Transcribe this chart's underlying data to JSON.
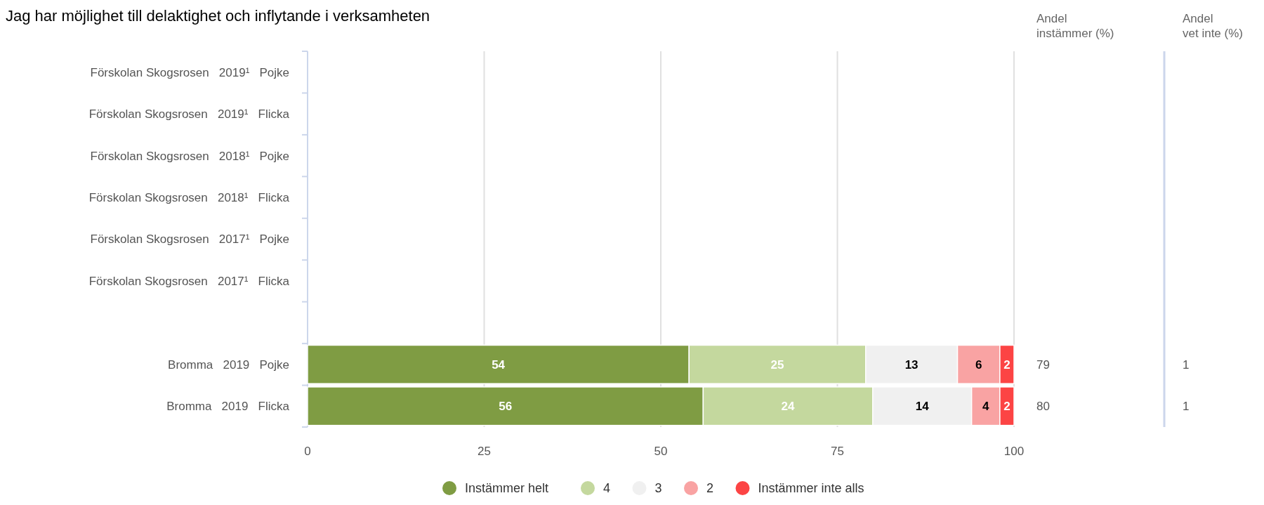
{
  "chart_data": {
    "type": "bar",
    "orientation": "horizontal",
    "stacked": true,
    "title": "Jag har möjlighet till delaktighet och inflytande i verksamheten",
    "categories": [
      "Förskolan Skogsrosen   2019¹   Pojke",
      "Förskolan Skogsrosen   2019¹   Flicka",
      "Förskolan Skogsrosen   2018¹   Pojke",
      "Förskolan Skogsrosen   2018¹   Flicka",
      "Förskolan Skogsrosen   2017¹   Pojke",
      "Förskolan Skogsrosen   2017¹   Flicka",
      null,
      "Bromma   2019   Pojke",
      "Bromma   2019   Flicka"
    ],
    "series": [
      {
        "name": "Instämmer helt",
        "color": "#7f9c43",
        "values": [
          null,
          null,
          null,
          null,
          null,
          null,
          null,
          54,
          56
        ]
      },
      {
        "name": "4",
        "color": "#c4d89e",
        "values": [
          null,
          null,
          null,
          null,
          null,
          null,
          null,
          25,
          24
        ]
      },
      {
        "name": "3",
        "color": "#f0f0f0",
        "values": [
          null,
          null,
          null,
          null,
          null,
          null,
          null,
          13,
          14
        ]
      },
      {
        "name": "2",
        "color": "#f9a3a3",
        "values": [
          null,
          null,
          null,
          null,
          null,
          null,
          null,
          6,
          4
        ]
      },
      {
        "name": "Instämmer inte alls",
        "color": "#fc4444",
        "values": [
          null,
          null,
          null,
          null,
          null,
          null,
          null,
          2,
          2
        ]
      }
    ],
    "xlim": [
      0,
      100
    ],
    "xticks": [
      0,
      25,
      50,
      75,
      100
    ],
    "grid": "x",
    "data_labels": true,
    "legend": "bottom",
    "annotations": [
      "Andel instämmer (%)",
      "79",
      "80",
      "Andel vet inte (%)",
      "1",
      "1"
    ]
  }
}
